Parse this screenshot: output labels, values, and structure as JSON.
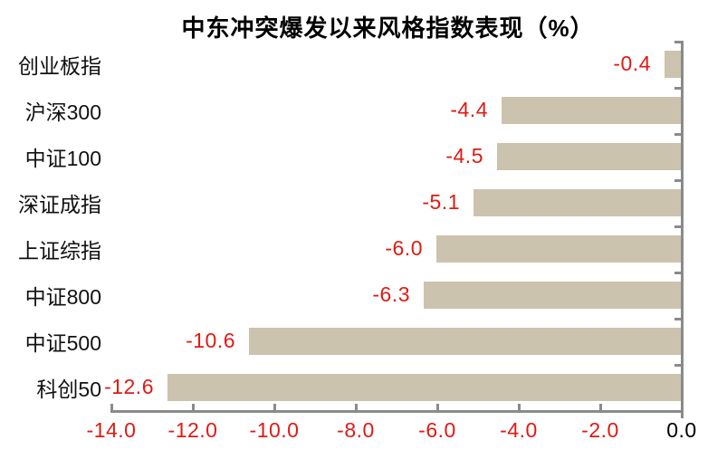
{
  "title": {
    "text": "中东冲突爆发以来风格指数表现（%）"
  },
  "colors": {
    "bar": "#ccc3ae",
    "axis": "#8a8a8a",
    "negative_label": "#e01a14",
    "zero_label": "#000000",
    "category_label": "#111111",
    "title": "#000000",
    "background": "#ffffff"
  },
  "chart_data": {
    "type": "bar",
    "orientation": "horizontal",
    "title": "中东冲突爆发以来风格指数表现（%）",
    "categories": [
      "创业板指",
      "沪深300",
      "中证100",
      "深证成指",
      "上证综指",
      "中证800",
      "中证500",
      "科创50"
    ],
    "values": [
      -0.4,
      -4.4,
      -4.5,
      -5.1,
      -6.0,
      -6.3,
      -10.6,
      -12.6
    ],
    "value_labels": [
      "-0.4",
      "-4.4",
      "-4.5",
      "-5.1",
      "-6.0",
      "-6.3",
      "-10.6",
      "-12.6"
    ],
    "xlabel": "",
    "ylabel": "",
    "xlim": [
      -14.0,
      0.0
    ],
    "x_ticks": [
      {
        "value": -14.0,
        "label": "-14.0"
      },
      {
        "value": -12.0,
        "label": "-12.0"
      },
      {
        "value": -10.0,
        "label": "-10.0"
      },
      {
        "value": -8.0,
        "label": "-8.0"
      },
      {
        "value": -6.0,
        "label": "-6.0"
      },
      {
        "value": -4.0,
        "label": "-4.0"
      },
      {
        "value": -2.0,
        "label": "-2.0"
      },
      {
        "value": 0.0,
        "label": "0.0"
      }
    ],
    "grid": false,
    "legend": false,
    "value_axis_position": "bottom",
    "category_axis_position": "right",
    "data_label_position": "outside-end-left"
  }
}
